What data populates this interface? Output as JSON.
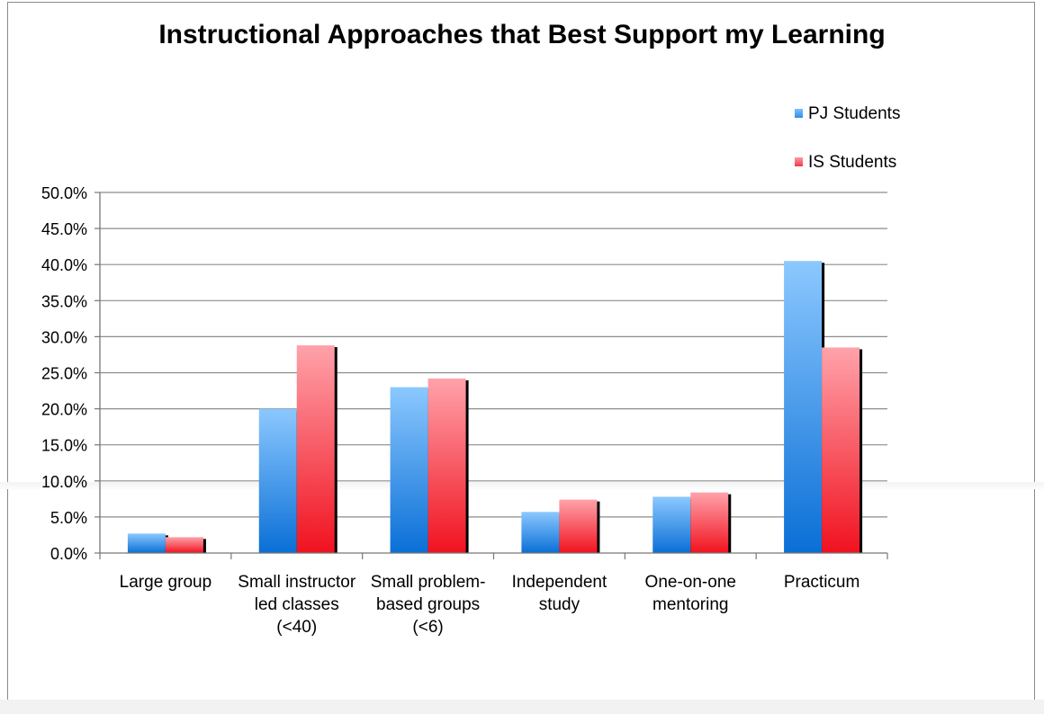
{
  "chart_data": {
    "type": "bar",
    "title": "Instructional Approaches that Best Support my Learning",
    "categories": [
      [
        "Large group"
      ],
      [
        "Small instructor",
        "led classes",
        "(<40)"
      ],
      [
        "Small problem-",
        "based groups",
        "(<6)"
      ],
      [
        "Independent",
        "study"
      ],
      [
        "One-on-one",
        "mentoring"
      ],
      [
        "Practicum"
      ]
    ],
    "series": [
      {
        "name": "PJ Students",
        "values": [
          2.7,
          20.0,
          23.0,
          5.7,
          7.8,
          40.5
        ],
        "color": "#2b8fe6"
      },
      {
        "name": "IS Students",
        "values": [
          2.2,
          28.8,
          24.2,
          7.4,
          8.4,
          28.5
        ],
        "color": "#ee3b4a"
      }
    ],
    "ylim": [
      0,
      50
    ],
    "yticks": [
      "0.0%",
      "5.0%",
      "10.0%",
      "15.0%",
      "20.0%",
      "25.0%",
      "30.0%",
      "35.0%",
      "40.0%",
      "45.0%",
      "50.0%"
    ],
    "grid": true,
    "legend": "top-right"
  }
}
